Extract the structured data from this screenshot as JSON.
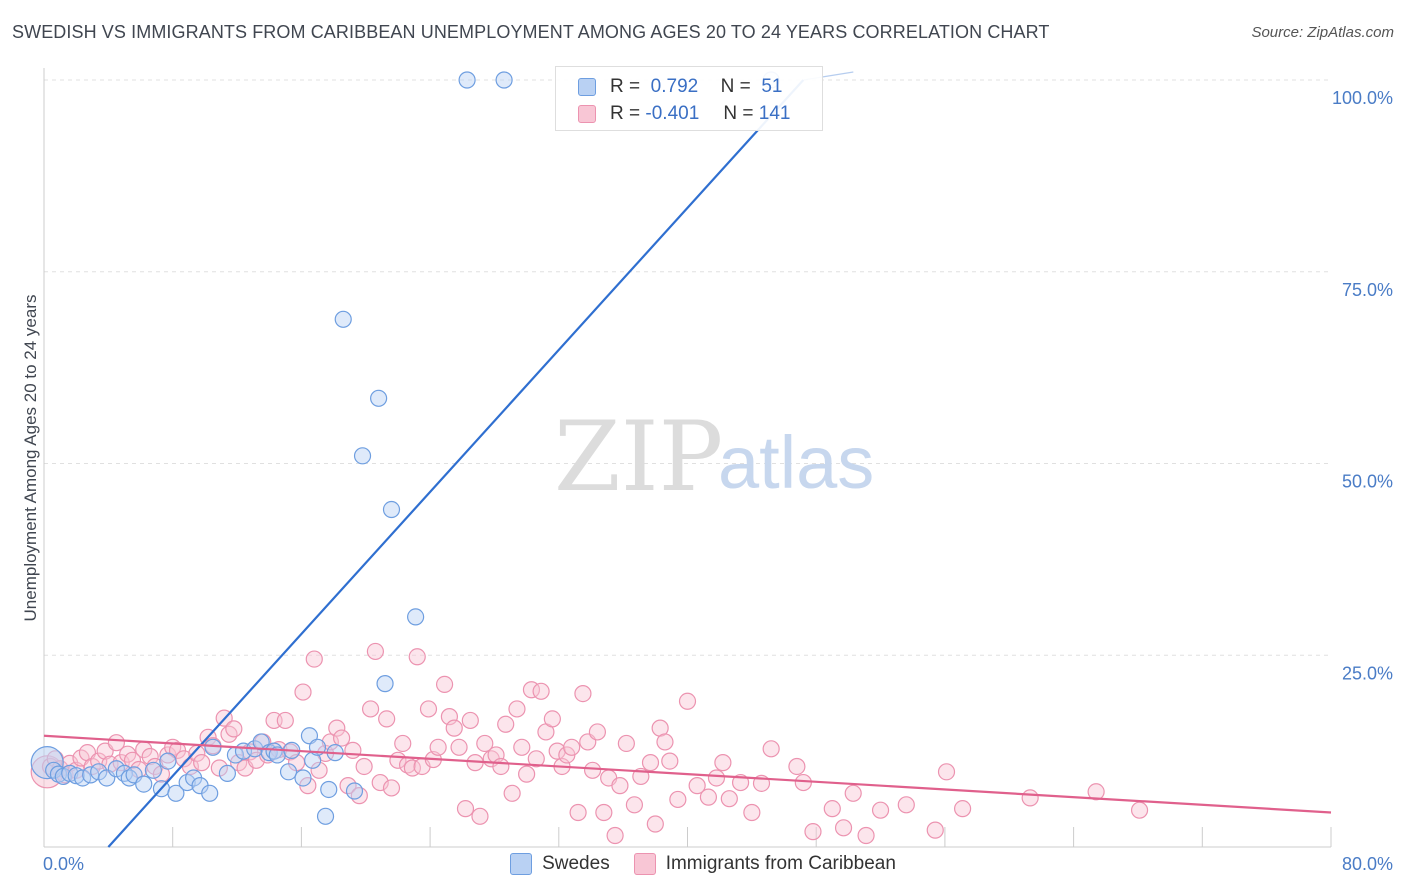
{
  "header": {
    "title": "SWEDISH VS IMMIGRANTS FROM CARIBBEAN UNEMPLOYMENT AMONG AGES 20 TO 24 YEARS CORRELATION CHART",
    "source": "Source: ZipAtlas.com"
  },
  "watermark": {
    "zip": "ZIP",
    "atlas": "atlas"
  },
  "legend": {
    "r_label": "R =",
    "n_label": "N =",
    "swedes": {
      "r": "0.792",
      "n": "51"
    },
    "caribbean": {
      "r": "-0.401",
      "n": "141"
    }
  },
  "bottom_legend": {
    "swedes": "Swedes",
    "caribbean": "Immigrants from Caribbean"
  },
  "colors": {
    "swedes_fill": "#b9d1f3",
    "swedes_stroke": "#6e9ee0",
    "swedes_line": "#2f6fd0",
    "caribbean_fill": "#f8c6d5",
    "caribbean_stroke": "#ec93b0",
    "caribbean_line": "#e0608c",
    "tick_text": "#4a7cc6",
    "grid": "#e0e0e0"
  },
  "chart_data": {
    "type": "scatter",
    "title": "SWEDISH VS IMMIGRANTS FROM CARIBBEAN UNEMPLOYMENT AMONG AGES 20 TO 24 YEARS CORRELATION CHART",
    "xlabel": "",
    "ylabel": "Unemployment Among Ages 20 to 24 years",
    "xlim": [
      0,
      80
    ],
    "ylim": [
      0,
      100
    ],
    "x_tick_labels": [
      "0.0%",
      "80.0%"
    ],
    "y_ticks": [
      25,
      50,
      75,
      100
    ],
    "y_tick_labels": [
      "25.0%",
      "50.0%",
      "75.0%",
      "100.0%"
    ],
    "grid": true,
    "legend_position": "top-center",
    "series": [
      {
        "name": "Swedes",
        "r": 0.792,
        "n": 51,
        "trend": {
          "x": [
            4.0,
            47.2
          ],
          "y": [
            0,
            100
          ]
        },
        "points": [
          [
            0.2,
            11,
            "big"
          ],
          [
            0.6,
            10
          ],
          [
            0.9,
            9.5
          ],
          [
            1.2,
            9.2
          ],
          [
            1.6,
            9.6
          ],
          [
            2.0,
            9.3
          ],
          [
            2.4,
            9.0
          ],
          [
            2.9,
            9.4
          ],
          [
            3.4,
            9.8
          ],
          [
            3.9,
            9.0
          ],
          [
            4.5,
            10.2
          ],
          [
            5.0,
            9.6
          ],
          [
            5.3,
            9.0
          ],
          [
            5.6,
            9.4
          ],
          [
            6.2,
            8.2
          ],
          [
            6.8,
            10.0
          ],
          [
            7.3,
            7.6
          ],
          [
            7.7,
            11.2
          ],
          [
            8.2,
            7.0
          ],
          [
            8.9,
            8.4
          ],
          [
            9.3,
            9.0
          ],
          [
            9.7,
            8.0
          ],
          [
            10.3,
            7.0
          ],
          [
            10.5,
            13.0
          ],
          [
            11.4,
            9.6
          ],
          [
            11.9,
            12.0
          ],
          [
            12.4,
            12.5
          ],
          [
            13.1,
            12.8
          ],
          [
            13.5,
            13.7
          ],
          [
            14.0,
            12.3
          ],
          [
            14.3,
            12.5
          ],
          [
            14.5,
            12.0
          ],
          [
            15.2,
            9.8
          ],
          [
            15.4,
            12.6
          ],
          [
            16.1,
            9.0
          ],
          [
            16.5,
            14.5
          ],
          [
            16.7,
            11.3
          ],
          [
            17.0,
            13.0
          ],
          [
            17.5,
            4.0
          ],
          [
            17.7,
            7.5
          ],
          [
            18.1,
            12.3
          ],
          [
            19.3,
            7.3
          ],
          [
            21.2,
            21.3
          ],
          [
            18.6,
            68.8
          ],
          [
            19.8,
            51.0
          ],
          [
            20.8,
            58.5
          ],
          [
            21.6,
            44.0
          ],
          [
            23.1,
            30.0
          ],
          [
            26.3,
            100
          ],
          [
            28.6,
            100
          ],
          [
            45.2,
            100
          ]
        ]
      },
      {
        "name": "Immigrants from Caribbean",
        "r": -0.401,
        "n": 141,
        "trend": {
          "x": [
            0,
            80
          ],
          "y": [
            14.5,
            4.5
          ]
        },
        "points": [
          [
            0.2,
            9.8,
            "big"
          ],
          [
            0.4,
            10.5
          ],
          [
            0.7,
            11.5
          ],
          [
            1.0,
            10.2
          ],
          [
            1.3,
            9.4
          ],
          [
            1.6,
            10.9
          ],
          [
            2.0,
            10.0
          ],
          [
            2.3,
            11.6
          ],
          [
            2.7,
            12.3
          ],
          [
            3.0,
            10.5
          ],
          [
            3.4,
            11.2
          ],
          [
            3.8,
            12.5
          ],
          [
            4.1,
            10.8
          ],
          [
            4.5,
            13.6
          ],
          [
            4.8,
            11.0
          ],
          [
            5.2,
            12.1
          ],
          [
            5.5,
            11.3
          ],
          [
            5.9,
            10.1
          ],
          [
            6.2,
            12.7
          ],
          [
            6.6,
            11.8
          ],
          [
            6.9,
            10.5
          ],
          [
            7.3,
            9.5
          ],
          [
            7.7,
            12.0
          ],
          [
            8.0,
            13.0
          ],
          [
            8.3,
            12.6
          ],
          [
            8.7,
            11.5
          ],
          [
            9.1,
            10.5
          ],
          [
            9.5,
            12.2
          ],
          [
            9.8,
            11.0
          ],
          [
            10.2,
            14.3
          ],
          [
            10.5,
            13.2
          ],
          [
            10.9,
            10.3
          ],
          [
            11.2,
            16.8
          ],
          [
            11.5,
            14.7
          ],
          [
            11.8,
            15.4
          ],
          [
            12.1,
            11.0
          ],
          [
            12.5,
            10.3
          ],
          [
            12.8,
            12.4
          ],
          [
            13.2,
            11.3
          ],
          [
            13.6,
            13.7
          ],
          [
            13.9,
            12.0
          ],
          [
            14.3,
            16.5
          ],
          [
            14.6,
            12.7
          ],
          [
            15.0,
            16.5
          ],
          [
            15.3,
            12.4
          ],
          [
            15.7,
            11.0
          ],
          [
            16.1,
            20.2
          ],
          [
            16.4,
            8.0
          ],
          [
            16.8,
            24.5
          ],
          [
            17.1,
            10.0
          ],
          [
            17.5,
            12.2
          ],
          [
            17.8,
            13.7
          ],
          [
            18.2,
            15.5
          ],
          [
            18.5,
            14.2
          ],
          [
            18.9,
            8.0
          ],
          [
            19.2,
            12.6
          ],
          [
            19.6,
            6.7
          ],
          [
            19.9,
            10.5
          ],
          [
            20.3,
            18.0
          ],
          [
            20.6,
            25.5
          ],
          [
            20.9,
            8.4
          ],
          [
            21.3,
            16.7
          ],
          [
            21.6,
            7.7
          ],
          [
            22.0,
            11.3
          ],
          [
            22.3,
            13.5
          ],
          [
            22.6,
            10.7
          ],
          [
            22.9,
            10.3
          ],
          [
            23.2,
            24.8
          ],
          [
            23.5,
            10.5
          ],
          [
            23.9,
            18.0
          ],
          [
            24.2,
            11.4
          ],
          [
            24.5,
            13.0
          ],
          [
            24.9,
            21.2
          ],
          [
            25.2,
            17.0
          ],
          [
            25.5,
            15.5
          ],
          [
            25.8,
            13.0
          ],
          [
            26.2,
            5.0
          ],
          [
            26.5,
            16.5
          ],
          [
            26.8,
            11.0
          ],
          [
            27.1,
            4.0
          ],
          [
            27.4,
            13.5
          ],
          [
            27.8,
            11.5
          ],
          [
            28.1,
            12.0
          ],
          [
            28.4,
            10.5
          ],
          [
            28.7,
            16.0
          ],
          [
            29.1,
            7.0
          ],
          [
            29.4,
            18.0
          ],
          [
            29.7,
            13.0
          ],
          [
            30.0,
            9.5
          ],
          [
            30.3,
            20.5
          ],
          [
            30.6,
            11.5
          ],
          [
            30.9,
            20.3
          ],
          [
            31.2,
            15.0
          ],
          [
            31.6,
            16.7
          ],
          [
            31.9,
            12.5
          ],
          [
            32.2,
            10.5
          ],
          [
            32.5,
            12.0
          ],
          [
            32.8,
            13.0
          ],
          [
            33.2,
            4.5
          ],
          [
            33.5,
            20.0
          ],
          [
            33.8,
            13.7
          ],
          [
            34.1,
            10.0
          ],
          [
            34.4,
            15.0
          ],
          [
            34.8,
            4.5
          ],
          [
            35.1,
            9.0
          ],
          [
            35.5,
            1.5
          ],
          [
            36.2,
            13.5
          ],
          [
            36.7,
            5.5
          ],
          [
            37.1,
            9.2
          ],
          [
            37.7,
            11.0
          ],
          [
            38.3,
            15.5
          ],
          [
            38.6,
            13.7
          ],
          [
            38.9,
            11.2
          ],
          [
            39.4,
            6.2
          ],
          [
            40.0,
            19.0
          ],
          [
            40.6,
            8.0
          ],
          [
            41.3,
            6.5
          ],
          [
            41.8,
            9.0
          ],
          [
            42.2,
            11.0
          ],
          [
            42.6,
            6.3
          ],
          [
            43.3,
            8.4
          ],
          [
            44.6,
            8.3
          ],
          [
            45.2,
            12.8
          ],
          [
            46.8,
            10.5
          ],
          [
            47.2,
            8.4
          ],
          [
            47.8,
            2.0
          ],
          [
            49.0,
            5.0
          ],
          [
            49.7,
            2.5
          ],
          [
            50.3,
            7.0
          ],
          [
            51.1,
            1.5
          ],
          [
            52.0,
            4.8
          ],
          [
            53.6,
            5.5
          ],
          [
            55.4,
            2.2
          ],
          [
            56.1,
            9.8
          ],
          [
            57.1,
            5.0
          ],
          [
            61.3,
            6.4
          ],
          [
            65.4,
            7.2
          ],
          [
            68.1,
            4.8
          ],
          [
            35.8,
            8.0
          ],
          [
            38.0,
            3.0
          ],
          [
            44.0,
            4.5
          ]
        ]
      }
    ]
  }
}
